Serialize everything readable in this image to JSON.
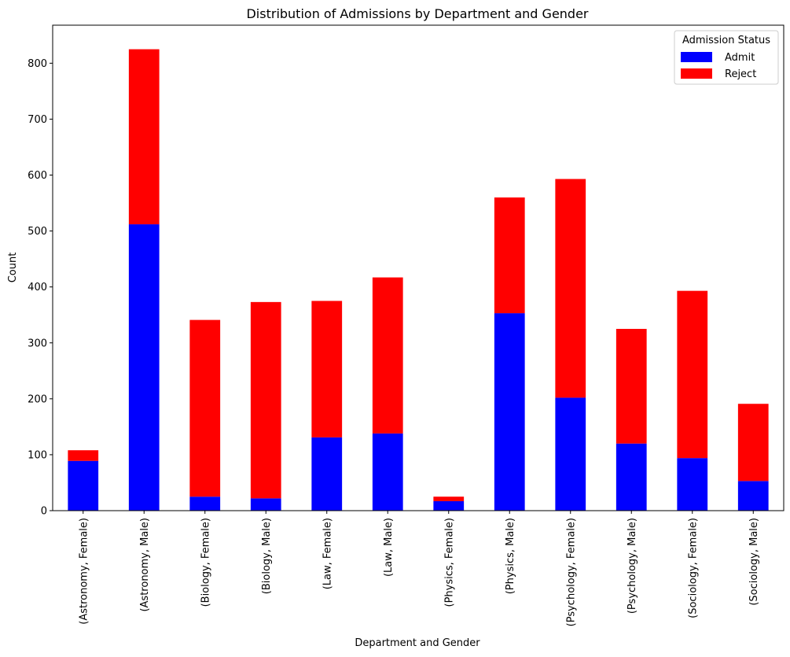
{
  "chart_data": {
    "type": "bar",
    "stacked": true,
    "title": "Distribution of Admissions by Department and Gender",
    "xlabel": "Department and Gender",
    "ylabel": "Count",
    "ylim": [
      0,
      868
    ],
    "yticks": [
      0,
      100,
      200,
      300,
      400,
      500,
      600,
      700,
      800
    ],
    "categories": [
      "(Astronomy, Female)",
      "(Astronomy, Male)",
      "(Biology, Female)",
      "(Biology, Male)",
      "(Law, Female)",
      "(Law, Male)",
      "(Physics, Female)",
      "(Physics, Male)",
      "(Psychology, Female)",
      "(Psychology, Male)",
      "(Sociology, Female)",
      "(Sociology, Male)"
    ],
    "series": [
      {
        "name": "Admit",
        "color": "#0000ff",
        "values": [
          89,
          512,
          25,
          22,
          131,
          138,
          17,
          353,
          202,
          120,
          94,
          53
        ]
      },
      {
        "name": "Reject",
        "color": "#ff0000",
        "values": [
          19,
          313,
          316,
          351,
          244,
          279,
          8,
          207,
          391,
          205,
          299,
          138
        ]
      }
    ],
    "legend": {
      "title": "Admission Status",
      "placement": "top-right"
    },
    "grid": false
  }
}
